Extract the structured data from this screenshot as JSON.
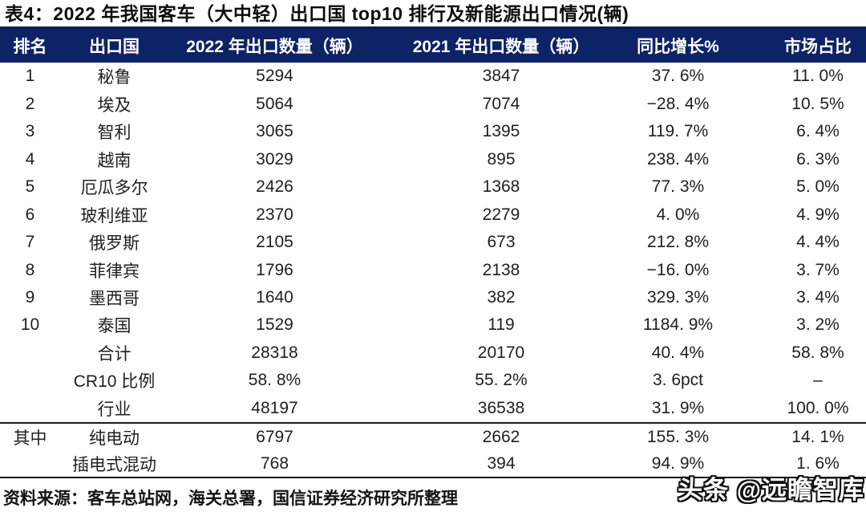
{
  "title": "表4：2022 年我国客车（大中轻）出口国 top10 排行及新能源出口情况(辆)",
  "table": {
    "headers": [
      "排名",
      "出口国",
      "2022 年出口数量（辆）",
      "2021 年出口数量（辆）",
      "同比增长%",
      "市场占比"
    ],
    "rows": [
      [
        "1",
        "秘鲁",
        "5294",
        "3847",
        "37. 6%",
        "11. 0%"
      ],
      [
        "2",
        "埃及",
        "5064",
        "7074",
        "−28. 4%",
        "10. 5%"
      ],
      [
        "3",
        "智利",
        "3065",
        "1395",
        "119. 7%",
        "6. 4%"
      ],
      [
        "4",
        "越南",
        "3029",
        "895",
        "238. 4%",
        "6. 3%"
      ],
      [
        "5",
        "厄瓜多尔",
        "2426",
        "1368",
        "77. 3%",
        "5. 0%"
      ],
      [
        "6",
        "玻利维亚",
        "2370",
        "2279",
        "4. 0%",
        "4. 9%"
      ],
      [
        "7",
        "俄罗斯",
        "2105",
        "673",
        "212. 8%",
        "4. 4%"
      ],
      [
        "8",
        "菲律宾",
        "1796",
        "2138",
        "−16. 0%",
        "3. 7%"
      ],
      [
        "9",
        "墨西哥",
        "1640",
        "382",
        "329. 3%",
        "3. 4%"
      ],
      [
        "10",
        "泰国",
        "1529",
        "119",
        "1184. 9%",
        "3. 2%"
      ]
    ],
    "summary_rows": [
      [
        "",
        "合计",
        "28318",
        "20170",
        "40. 4%",
        "58. 8%"
      ],
      [
        "",
        "CR10 比例",
        "58. 8%",
        "55. 2%",
        "3. 6pct",
        "–"
      ],
      [
        "",
        "行业",
        "48197",
        "36538",
        "31. 9%",
        "100. 0%"
      ]
    ],
    "nev_rows": [
      [
        "其中",
        "纯电动",
        "6797",
        "2662",
        "155. 3%",
        "14. 1%"
      ],
      [
        "",
        "插电式混动",
        "768",
        "394",
        "94. 9%",
        "1. 6%"
      ]
    ]
  },
  "footer": {
    "source_note": "资料来源：客车总站网，海关总署，国信证券经济研究所整理"
  },
  "watermark": {
    "text": "头条 @远瞻智库"
  },
  "colors": {
    "header_bg": "#0e2365",
    "header_text": "#ffffff",
    "body_text": "#1f1f1f",
    "rule": "#1b1b1b",
    "title_text": "#0d0d0d"
  }
}
